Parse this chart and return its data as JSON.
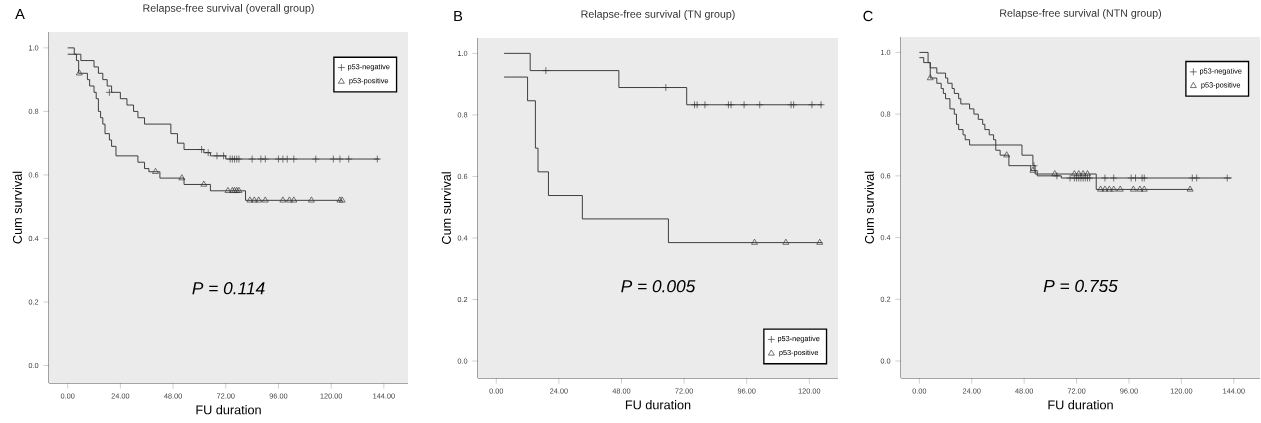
{
  "chart_data": [
    {
      "type": "step",
      "title": "Relapse-free survival (overall group)",
      "xlabel": "FU duration",
      "ylabel": "Cum survival",
      "annotations": [
        "A",
        "P = 0.114"
      ],
      "legend": "top right",
      "xlim": [
        -8.5,
        155
      ],
      "ylim": [
        -0.055,
        1.05
      ],
      "xticks": [
        {
          "value": 0,
          "label": "0.00"
        },
        {
          "value": 24,
          "label": "24.00"
        },
        {
          "value": 48,
          "label": "48.00"
        },
        {
          "value": 72,
          "label": "72.00"
        },
        {
          "value": 96,
          "label": "96.00"
        },
        {
          "value": 120,
          "label": "120.00"
        },
        {
          "value": 144,
          "label": "144.00"
        }
      ],
      "yticks": [
        {
          "value": 0,
          "label": "0.0"
        },
        {
          "value": 0.2,
          "label": "0.2"
        },
        {
          "value": 0.4,
          "label": "0.4"
        },
        {
          "value": 0.6,
          "label": "0.6"
        },
        {
          "value": 0.8,
          "label": "0.8"
        },
        {
          "value": 1,
          "label": "1.0"
        }
      ],
      "series": [
        {
          "color": "#333333",
          "marker": "none",
          "x": [
            0,
            3,
            6,
            12,
            14,
            16,
            18,
            20,
            24,
            27,
            30,
            32,
            35,
            47,
            50,
            53,
            62,
            65,
            72,
            142
          ],
          "values": [
            1.0,
            0.98,
            0.96,
            0.94,
            0.92,
            0.9,
            0.88,
            0.86,
            0.84,
            0.82,
            0.8,
            0.78,
            0.76,
            0.73,
            0.7,
            0.68,
            0.67,
            0.66,
            0.65,
            0.65
          ]
        },
        {
          "color": "#333333",
          "marker": "none",
          "x": [
            0,
            4,
            5,
            9,
            10,
            12,
            13,
            14,
            15,
            16,
            17,
            19,
            20,
            22,
            32,
            35,
            37,
            42,
            53,
            65,
            81,
            125
          ],
          "values": [
            0.98,
            0.96,
            0.92,
            0.9,
            0.88,
            0.86,
            0.84,
            0.8,
            0.78,
            0.76,
            0.73,
            0.71,
            0.69,
            0.66,
            0.64,
            0.62,
            0.61,
            0.59,
            0.57,
            0.55,
            0.52,
            0.52
          ]
        },
        {
          "type": "scatter",
          "name": "p53-negative",
          "color": "#333333",
          "marker": "cross",
          "x": [
            19,
            61,
            64,
            68,
            71,
            74,
            75,
            76,
            77,
            78,
            84,
            88,
            90,
            96,
            98,
            100,
            103,
            113,
            121,
            124,
            128,
            141
          ],
          "values": [
            0.86,
            0.68,
            0.67,
            0.66,
            0.66,
            0.65,
            0.65,
            0.65,
            0.65,
            0.65,
            0.65,
            0.65,
            0.65,
            0.65,
            0.65,
            0.65,
            0.65,
            0.65,
            0.65,
            0.65,
            0.65,
            0.65
          ]
        },
        {
          "type": "scatter",
          "name": "p53-positive",
          "color": "#333333",
          "marker": "triangle",
          "x": [
            5.3,
            40,
            52,
            62,
            73,
            75,
            76,
            77,
            78,
            83,
            85,
            87,
            90,
            98,
            101,
            103,
            111,
            124,
            125
          ],
          "values": [
            0.92,
            0.61,
            0.59,
            0.57,
            0.55,
            0.55,
            0.55,
            0.55,
            0.55,
            0.52,
            0.52,
            0.52,
            0.52,
            0.52,
            0.52,
            0.52,
            0.52,
            0.52,
            0.52
          ]
        }
      ]
    },
    {
      "type": "step",
      "title": "Relapse-free survival (TN group)",
      "xlabel": "FU duration",
      "ylabel": "Cum survival",
      "annotations": [
        "B",
        "P = 0.005"
      ],
      "legend": "bottom right",
      "xlim": [
        -7,
        131
      ],
      "ylim": [
        -0.055,
        1.05
      ],
      "xticks": [
        {
          "value": 0,
          "label": "0.00"
        },
        {
          "value": 24,
          "label": "24.00"
        },
        {
          "value": 48,
          "label": "48.00"
        },
        {
          "value": 72,
          "label": "72.00"
        },
        {
          "value": 96,
          "label": "96.00"
        },
        {
          "value": 120,
          "label": "120.00"
        }
      ],
      "yticks": [
        {
          "value": 0,
          "label": "0.0"
        },
        {
          "value": 0.2,
          "label": "0.2"
        },
        {
          "value": 0.4,
          "label": "0.4"
        },
        {
          "value": 0.6,
          "label": "0.6"
        },
        {
          "value": 0.8,
          "label": "0.8"
        },
        {
          "value": 1,
          "label": "1.0"
        }
      ],
      "series": [
        {
          "color": "#333333",
          "marker": "none",
          "x": [
            3,
            13,
            47,
            73,
            125
          ],
          "values": [
            1.0,
            0.944,
            0.889,
            0.833,
            0.833
          ]
        },
        {
          "color": "#333333",
          "marker": "none",
          "x": [
            3,
            12,
            15,
            16,
            20,
            33,
            66,
            125
          ],
          "values": [
            0.923,
            0.846,
            0.692,
            0.615,
            0.538,
            0.462,
            0.385,
            0.385
          ]
        },
        {
          "type": "scatter",
          "name": "p53-negative",
          "color": "#333333",
          "marker": "cross",
          "x": [
            19,
            65,
            76,
            77,
            80,
            89,
            90,
            95,
            101,
            113,
            114,
            121,
            124.5
          ],
          "values": [
            0.944,
            0.889,
            0.833,
            0.833,
            0.833,
            0.833,
            0.833,
            0.833,
            0.833,
            0.833,
            0.833,
            0.833,
            0.833
          ]
        },
        {
          "type": "scatter",
          "name": "p53-positive",
          "color": "#333333",
          "marker": "triangle",
          "x": [
            99,
            111,
            124
          ],
          "values": [
            0.385,
            0.385,
            0.385
          ]
        }
      ]
    },
    {
      "type": "step",
      "title": "Relapse-free survival (NTN group)",
      "xlabel": "FU duration",
      "ylabel": "Cum survival",
      "annotations": [
        "C",
        "P = 0.755"
      ],
      "legend": "top right",
      "xlim": [
        -8.4,
        156
      ],
      "ylim": [
        -0.055,
        1.05
      ],
      "xticks": [
        {
          "value": 0,
          "label": "0.00"
        },
        {
          "value": 24,
          "label": "24.00"
        },
        {
          "value": 48,
          "label": "48.00"
        },
        {
          "value": 72,
          "label": "72.00"
        },
        {
          "value": 96,
          "label": "96.00"
        },
        {
          "value": 120,
          "label": "120.00"
        },
        {
          "value": 144,
          "label": "144.00"
        }
      ],
      "yticks": [
        {
          "value": 0,
          "label": "0.0"
        },
        {
          "value": 0.2,
          "label": "0.2"
        },
        {
          "value": 0.4,
          "label": "0.4"
        },
        {
          "value": 0.6,
          "label": "0.6"
        },
        {
          "value": 0.8,
          "label": "0.8"
        },
        {
          "value": 1,
          "label": "1.0"
        }
      ],
      "series": [
        {
          "color": "#333333",
          "marker": "none",
          "x": [
            0,
            4,
            5,
            8,
            12,
            13,
            15,
            16,
            18,
            19,
            23,
            25,
            27,
            29,
            30,
            32,
            34,
            35,
            47,
            52,
            53,
            54,
            65,
            143
          ],
          "values": [
            1.0,
            0.967,
            0.95,
            0.933,
            0.917,
            0.9,
            0.883,
            0.867,
            0.85,
            0.833,
            0.817,
            0.8,
            0.783,
            0.767,
            0.75,
            0.733,
            0.717,
            0.7,
            0.667,
            0.633,
            0.617,
            0.6,
            0.593,
            0.593
          ]
        },
        {
          "color": "#333333",
          "marker": "none",
          "x": [
            0,
            2,
            5,
            8,
            10,
            11,
            12,
            14,
            16,
            17,
            18,
            20,
            21,
            23,
            35,
            37,
            41,
            51,
            53,
            81,
            125
          ],
          "values": [
            0.983,
            0.967,
            0.917,
            0.9,
            0.883,
            0.867,
            0.85,
            0.817,
            0.8,
            0.767,
            0.75,
            0.733,
            0.717,
            0.7,
            0.683,
            0.667,
            0.633,
            0.617,
            0.606,
            0.556,
            0.556
          ]
        },
        {
          "type": "scatter",
          "name": "p53-negative",
          "color": "#333333",
          "marker": "cross",
          "x": [
            52.5,
            63,
            69,
            71,
            72,
            73,
            74,
            75,
            76,
            77,
            78,
            85,
            89,
            97,
            99,
            102,
            103,
            125,
            127,
            141
          ],
          "values": [
            0.633,
            0.6,
            0.593,
            0.593,
            0.593,
            0.593,
            0.593,
            0.593,
            0.593,
            0.593,
            0.593,
            0.593,
            0.593,
            0.593,
            0.593,
            0.593,
            0.593,
            0.593,
            0.593,
            0.593
          ]
        },
        {
          "type": "scatter",
          "name": "p53-positive",
          "color": "#333333",
          "marker": "triangle",
          "x": [
            5,
            40,
            52,
            62,
            71,
            73,
            75,
            77,
            83,
            85,
            87,
            89,
            92,
            98,
            101,
            103,
            124
          ],
          "values": [
            0.917,
            0.667,
            0.617,
            0.606,
            0.606,
            0.606,
            0.606,
            0.606,
            0.556,
            0.556,
            0.556,
            0.556,
            0.556,
            0.556,
            0.556,
            0.556,
            0.556
          ]
        }
      ]
    }
  ]
}
